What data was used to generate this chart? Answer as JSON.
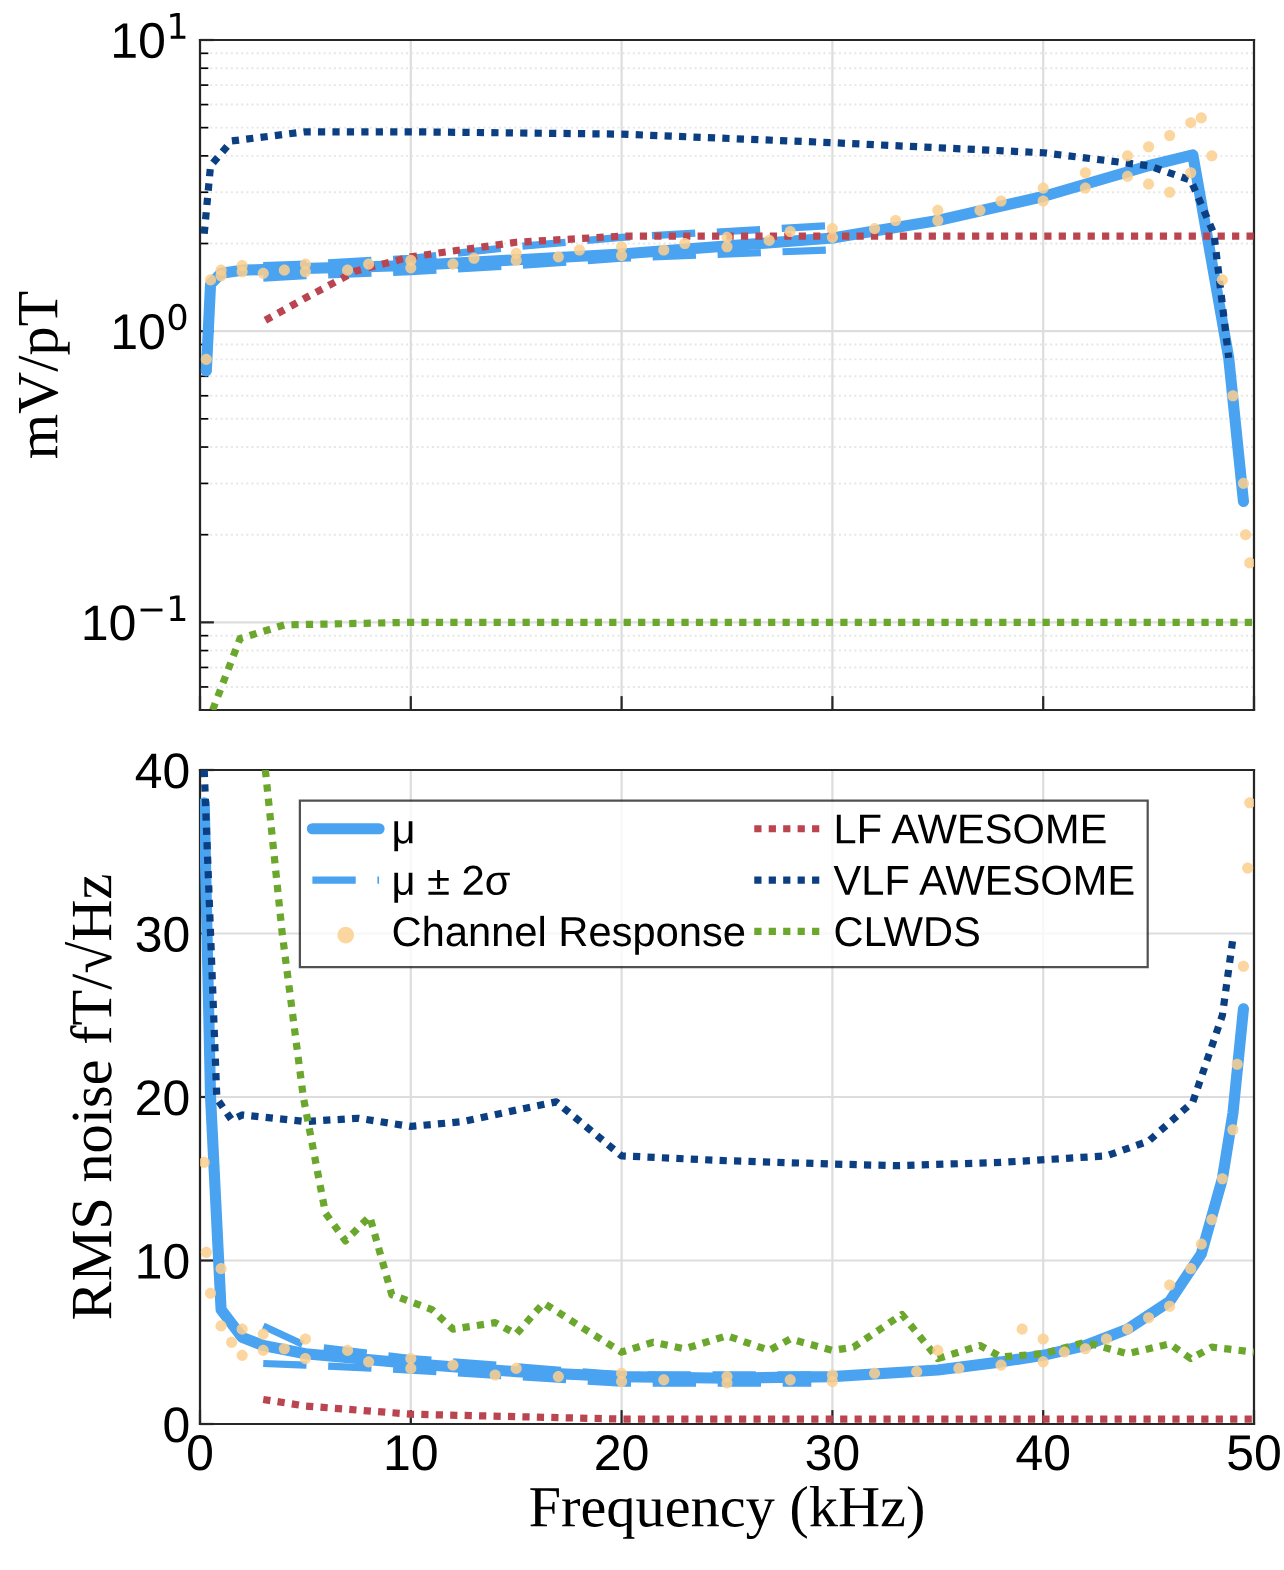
{
  "chart_data": [
    {
      "type": "line",
      "ylabel": "mV/pT",
      "log": "y",
      "xlim": [
        0,
        50
      ],
      "xticks": [
        0,
        10,
        20,
        30,
        40,
        50
      ],
      "ylim": [
        0.05,
        10
      ],
      "yticks": [
        {
          "value": 0.1,
          "label": "10$^{−1}$"
        },
        {
          "value": 1,
          "label": "10$^{0}$"
        },
        {
          "value": 10,
          "label": "10$^{1}$"
        }
      ],
      "tick_labels": "y",
      "grid": true,
      "series": [
        {
          "type": "scatter",
          "color": "#fbcf8e",
          "marker": "circle",
          "x": [
            0.3,
            0.5,
            1,
            1,
            2,
            2,
            3,
            4,
            5,
            5,
            7,
            8,
            10,
            10,
            12,
            13,
            15,
            15,
            17,
            18,
            20,
            20,
            22,
            23,
            25,
            25,
            27,
            28,
            30,
            30,
            32,
            33,
            35,
            35,
            37,
            38,
            40,
            40,
            42,
            42,
            44,
            44,
            45,
            45,
            46,
            46,
            47,
            47,
            47.5,
            48,
            48.5,
            49,
            49.5,
            49.6,
            49.8
          ],
          "values": [
            0.8,
            1.5,
            1.55,
            1.62,
            1.6,
            1.68,
            1.58,
            1.62,
            1.6,
            1.7,
            1.62,
            1.7,
            1.65,
            1.75,
            1.7,
            1.78,
            1.75,
            1.85,
            1.8,
            1.9,
            1.82,
            1.95,
            1.9,
            2.0,
            1.95,
            2.1,
            2.05,
            2.2,
            2.1,
            2.25,
            2.25,
            2.4,
            2.4,
            2.6,
            2.6,
            2.8,
            2.8,
            3.1,
            3.1,
            3.5,
            3.4,
            4.0,
            3.2,
            4.3,
            3.0,
            4.7,
            3.5,
            5.2,
            5.4,
            4.0,
            1.5,
            0.6,
            0.3,
            0.2,
            0.16
          ]
        },
        {
          "color": "#ba4450",
          "line_style": "dotted",
          "x": [
            3.1,
            5,
            7.4,
            10,
            15,
            20,
            30,
            50
          ],
          "values": [
            1.09,
            1.3,
            1.61,
            1.8,
            2.02,
            2.12,
            2.12,
            2.12
          ]
        },
        {
          "color": "#0c3f82",
          "line_style": "dotted",
          "x": [
            0.2,
            0.5,
            1.5,
            5,
            10,
            20,
            30,
            40,
            45,
            47,
            48.1,
            48.8
          ],
          "values": [
            2.16,
            3.7,
            4.5,
            4.84,
            4.84,
            4.75,
            4.44,
            4.1,
            3.7,
            3.3,
            2.16,
            0.81
          ]
        },
        {
          "color": "#6ba72c",
          "line_style": "dotted",
          "x": [
            0.6,
            1.9,
            4,
            10,
            50
          ],
          "values": [
            0.05,
            0.088,
            0.098,
            0.1,
            0.1
          ]
        },
        {
          "color": "#4aa3f0",
          "line_style": "dashed",
          "x": [
            3,
            5,
            10,
            15,
            20,
            29.7
          ],
          "values": [
            1.68,
            1.7,
            1.78,
            1.95,
            2.1,
            2.3
          ]
        },
        {
          "color": "#4aa3f0",
          "line_style": "dashed",
          "x": [
            3,
            5,
            10,
            15,
            20,
            29.7
          ],
          "values": [
            1.52,
            1.55,
            1.6,
            1.68,
            1.78,
            1.9
          ]
        },
        {
          "color": "#4aa3f0",
          "line_style": "solid",
          "x": [
            0.3,
            0.5,
            1,
            2,
            10,
            20,
            30,
            35,
            40,
            45,
            47.1,
            48.8,
            49.5
          ],
          "values": [
            0.73,
            1.45,
            1.58,
            1.62,
            1.68,
            1.84,
            2.09,
            2.4,
            2.9,
            3.7,
            4.03,
            0.81,
            0.26
          ]
        }
      ]
    },
    {
      "type": "line",
      "xlabel": "Frequency (kHz)",
      "ylabel": "RMS noise fT/√Hz",
      "xlim": [
        0,
        50
      ],
      "xticks": [
        0,
        10,
        20,
        30,
        40,
        50
      ],
      "ylim": [
        0,
        40
      ],
      "yticks": [
        0,
        10,
        20,
        30,
        40
      ],
      "grid": true,
      "legend": "top",
      "series": [
        {
          "name": "μ",
          "color": "#4aa3f0",
          "line_style": "solid",
          "x": [
            0.2,
            0.5,
            1,
            2,
            3,
            5,
            10,
            15,
            20,
            25,
            30,
            35,
            38,
            40,
            42,
            44,
            46,
            47.5,
            48.5,
            49,
            49.5
          ],
          "values": [
            38,
            20,
            7,
            5.3,
            4.8,
            4.3,
            3.7,
            3.2,
            2.9,
            2.8,
            2.9,
            3.3,
            3.8,
            4.2,
            4.8,
            5.8,
            7.5,
            10.4,
            15,
            19,
            25.4
          ]
        },
        {
          "name": "μ ± 2σ",
          "color": "#4aa3f0",
          "line_style": "dashed",
          "x": [
            3,
            5,
            10,
            20,
            29
          ],
          "values": [
            6.0,
            4.8,
            4.0,
            3.0,
            3.0
          ]
        },
        {
          "type": "scatter",
          "name": "Channel Response",
          "color": "#fbcf8e",
          "marker": "circle",
          "x": [
            0.2,
            0.3,
            0.5,
            1,
            1,
            1.5,
            2,
            2,
            3,
            3,
            4,
            5,
            5,
            7,
            8,
            10,
            10,
            12,
            14,
            15,
            17,
            20,
            20,
            22,
            25,
            25,
            28,
            30,
            30,
            32,
            34,
            35,
            36,
            38,
            39,
            40,
            40,
            41,
            42,
            43,
            44,
            45,
            46,
            46,
            47,
            47.5,
            48,
            48.5,
            49,
            49.2,
            49.5,
            49.7,
            49.8
          ],
          "values": [
            16,
            10.5,
            8,
            6,
            9.5,
            5,
            5.8,
            4.2,
            4.5,
            5.5,
            4.6,
            5.2,
            4.0,
            4.5,
            3.8,
            4.0,
            3.4,
            3.6,
            3.0,
            3.4,
            2.9,
            3.1,
            2.6,
            2.7,
            2.9,
            2.5,
            2.7,
            3.0,
            2.6,
            3.1,
            3.2,
            4.5,
            3.4,
            3.6,
            5.8,
            5.2,
            3.8,
            4.4,
            4.6,
            5.2,
            5.8,
            6.5,
            7.2,
            8.5,
            9.5,
            11,
            12.5,
            15,
            18,
            22,
            28,
            34,
            38
          ]
        },
        {
          "name": "LF AWESOME",
          "color": "#ba4450",
          "line_style": "dotted",
          "x": [
            3,
            5,
            10,
            20,
            50
          ],
          "values": [
            1.5,
            1.1,
            0.6,
            0.3,
            0.3
          ]
        },
        {
          "name": "VLF AWESOME",
          "color": "#0c3f82",
          "line_style": "dotted",
          "x": [
            0.2,
            0.5,
            0.8,
            1.5,
            2,
            5,
            7.5,
            10,
            12.5,
            15,
            16.9,
            20,
            25,
            30,
            33,
            38,
            43,
            45,
            47.1,
            48.5,
            49.0
          ],
          "values": [
            40,
            30,
            19.9,
            18.6,
            18.9,
            18.5,
            18.7,
            18.2,
            18.5,
            19.2,
            19.7,
            16.4,
            16.1,
            15.9,
            15.8,
            16.0,
            16.4,
            17.3,
            19.7,
            25,
            29.7
          ]
        },
        {
          "name": "CLWDS",
          "color": "#6ba72c",
          "line_style": "dotted",
          "x": [
            3.1,
            3.9,
            4.9,
            5.95,
            6.9,
            8.05,
            9.1,
            11,
            12,
            14,
            15,
            16.3,
            18,
            20,
            21.5,
            23,
            25,
            27,
            28,
            30,
            31,
            33.3,
            35,
            37,
            38,
            40,
            42,
            44,
            46,
            47,
            48,
            50
          ],
          "values": [
            40,
            30,
            20,
            12.9,
            11.2,
            12.7,
            7.9,
            7,
            5.8,
            6.2,
            5.5,
            7.4,
            6,
            4.4,
            5,
            4.6,
            5.4,
            4.5,
            5.2,
            4.5,
            4.7,
            6.7,
            4.0,
            4.8,
            4.1,
            4.3,
            5,
            4.3,
            4.9,
            4,
            4.7,
            4.4
          ]
        },
        {
          "color": "#4aa3f0",
          "line_style": "dashed",
          "x": [
            3,
            5,
            10,
            20,
            29
          ],
          "values": [
            3.7,
            3.6,
            3.3,
            2.5,
            2.5
          ]
        }
      ]
    }
  ]
}
